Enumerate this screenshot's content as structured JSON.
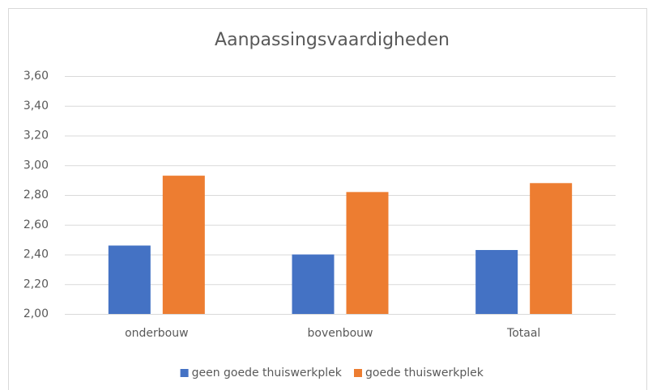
{
  "chart_data": {
    "type": "bar",
    "title": "Aanpassingsvaardigheden",
    "categories": [
      "onderbouw",
      "bovenbouw",
      "Totaal"
    ],
    "series": [
      {
        "name": "geen goede thuiswerkplek",
        "color": "#4472c4",
        "values": [
          2.46,
          2.4,
          2.43
        ]
      },
      {
        "name": "goede thuiswerkplek",
        "color": "#ed7d31",
        "values": [
          2.93,
          2.82,
          2.88
        ]
      }
    ],
    "ylim": [
      2.0,
      3.6
    ],
    "yticks": [
      {
        "value": 2.0,
        "label": "2,00"
      },
      {
        "value": 2.2,
        "label": "2,20"
      },
      {
        "value": 2.4,
        "label": "2,40"
      },
      {
        "value": 2.6,
        "label": "2,60"
      },
      {
        "value": 2.8,
        "label": "2,80"
      },
      {
        "value": 3.0,
        "label": "3,00"
      },
      {
        "value": 3.2,
        "label": "3,20"
      },
      {
        "value": 3.4,
        "label": "3,40"
      },
      {
        "value": 3.6,
        "label": "3,60"
      }
    ],
    "grid": true,
    "legend": "bottom"
  }
}
